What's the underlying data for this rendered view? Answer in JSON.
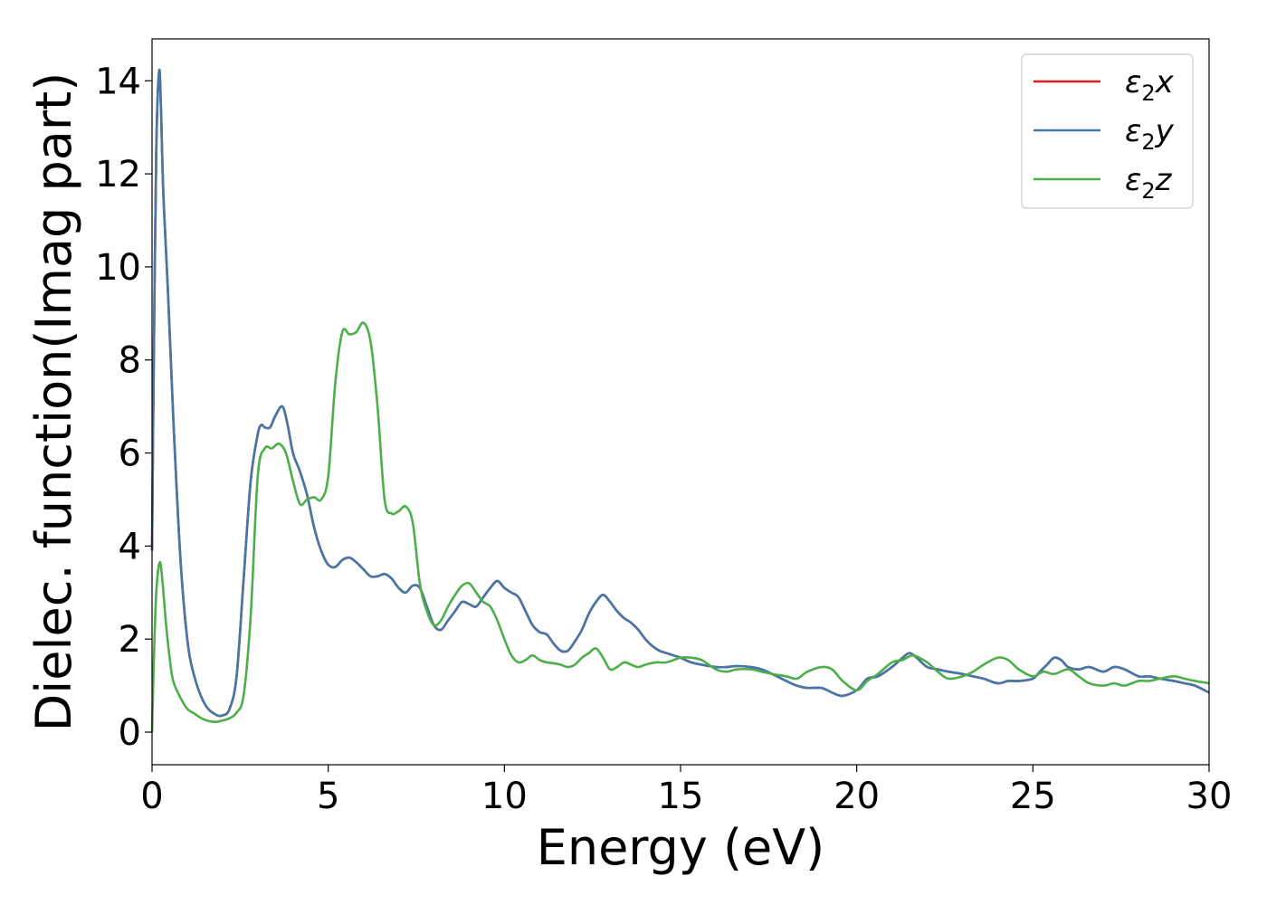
{
  "chart_data": {
    "type": "line",
    "title": "",
    "xlabel": "Energy (eV)",
    "ylabel": "Dielec. function(Imag part)",
    "xlim": [
      0,
      30
    ],
    "ylim": [
      -0.7,
      14.9
    ],
    "x_ticks": [
      0,
      5,
      10,
      15,
      20,
      25,
      30
    ],
    "y_ticks": [
      0,
      2,
      4,
      6,
      8,
      10,
      12,
      14
    ],
    "grid": false,
    "legend_position": "top-right",
    "series": [
      {
        "name": "ε2x",
        "legend_parts": [
          "ε",
          "2",
          "x"
        ],
        "color": "#e41a1c",
        "x": [
          0,
          0.05,
          0.12,
          0.2,
          0.25,
          0.32,
          0.45,
          0.6,
          0.8,
          1.0,
          1.2,
          1.5,
          1.8,
          2.0,
          2.2,
          2.4,
          2.6,
          2.8,
          3.0,
          3.1,
          3.2,
          3.35,
          3.5,
          3.7,
          3.85,
          4.0,
          4.2,
          4.4,
          4.6,
          4.8,
          5.0,
          5.2,
          5.4,
          5.6,
          5.8,
          6.0,
          6.2,
          6.4,
          6.6,
          6.8,
          7.0,
          7.2,
          7.4,
          7.6,
          7.8,
          8.0,
          8.2,
          8.4,
          8.6,
          8.8,
          9.0,
          9.2,
          9.4,
          9.6,
          9.8,
          10.0,
          10.2,
          10.4,
          10.6,
          10.8,
          11.0,
          11.2,
          11.4,
          11.6,
          11.8,
          12.0,
          12.2,
          12.4,
          12.6,
          12.8,
          13.0,
          13.2,
          13.4,
          13.6,
          13.8,
          14.0,
          14.2,
          14.4,
          14.6,
          14.8,
          15.0,
          15.3,
          15.6,
          16.0,
          16.3,
          16.6,
          17.0,
          17.3,
          17.6,
          18.0,
          18.3,
          18.6,
          19.0,
          19.3,
          19.6,
          20.0,
          20.3,
          20.6,
          21.0,
          21.3,
          21.5,
          21.7,
          22.0,
          22.3,
          22.6,
          23.0,
          23.3,
          23.6,
          24.0,
          24.3,
          24.6,
          25.0,
          25.2,
          25.4,
          25.6,
          25.8,
          26.0,
          26.3,
          26.6,
          27.0,
          27.3,
          27.6,
          28.0,
          28.3,
          28.6,
          29.0,
          29.3,
          29.6,
          30.0
        ],
        "values": [
          3.9,
          8.0,
          12.5,
          14.2,
          13.5,
          11.6,
          9.5,
          6.8,
          3.8,
          2.0,
          1.2,
          0.6,
          0.38,
          0.36,
          0.5,
          1.2,
          3.3,
          5.4,
          6.4,
          6.6,
          6.55,
          6.55,
          6.8,
          7.0,
          6.6,
          6.0,
          5.6,
          5.1,
          4.4,
          3.9,
          3.6,
          3.55,
          3.7,
          3.75,
          3.65,
          3.5,
          3.35,
          3.35,
          3.4,
          3.3,
          3.1,
          3.0,
          3.15,
          3.1,
          2.7,
          2.3,
          2.2,
          2.4,
          2.6,
          2.8,
          2.75,
          2.7,
          2.9,
          3.1,
          3.25,
          3.1,
          3.0,
          2.9,
          2.6,
          2.3,
          2.15,
          2.1,
          1.9,
          1.75,
          1.75,
          1.95,
          2.2,
          2.55,
          2.8,
          2.95,
          2.8,
          2.6,
          2.45,
          2.35,
          2.2,
          2.0,
          1.85,
          1.75,
          1.7,
          1.65,
          1.6,
          1.5,
          1.45,
          1.4,
          1.4,
          1.42,
          1.4,
          1.35,
          1.25,
          1.1,
          1.0,
          0.95,
          0.95,
          0.85,
          0.78,
          0.9,
          1.15,
          1.2,
          1.4,
          1.6,
          1.7,
          1.6,
          1.4,
          1.35,
          1.3,
          1.25,
          1.2,
          1.15,
          1.05,
          1.1,
          1.1,
          1.15,
          1.3,
          1.45,
          1.6,
          1.55,
          1.4,
          1.35,
          1.4,
          1.3,
          1.4,
          1.35,
          1.2,
          1.2,
          1.15,
          1.1,
          1.05,
          1.0,
          0.85
        ]
      },
      {
        "name": "ε2y",
        "legend_parts": [
          "ε",
          "2",
          "y"
        ],
        "color": "#4477aa",
        "x": [
          0,
          0.05,
          0.12,
          0.2,
          0.25,
          0.32,
          0.45,
          0.6,
          0.8,
          1.0,
          1.2,
          1.5,
          1.8,
          2.0,
          2.2,
          2.4,
          2.6,
          2.8,
          3.0,
          3.1,
          3.2,
          3.35,
          3.5,
          3.7,
          3.85,
          4.0,
          4.2,
          4.4,
          4.6,
          4.8,
          5.0,
          5.2,
          5.4,
          5.6,
          5.8,
          6.0,
          6.2,
          6.4,
          6.6,
          6.8,
          7.0,
          7.2,
          7.4,
          7.6,
          7.8,
          8.0,
          8.2,
          8.4,
          8.6,
          8.8,
          9.0,
          9.2,
          9.4,
          9.6,
          9.8,
          10.0,
          10.2,
          10.4,
          10.6,
          10.8,
          11.0,
          11.2,
          11.4,
          11.6,
          11.8,
          12.0,
          12.2,
          12.4,
          12.6,
          12.8,
          13.0,
          13.2,
          13.4,
          13.6,
          13.8,
          14.0,
          14.2,
          14.4,
          14.6,
          14.8,
          15.0,
          15.3,
          15.6,
          16.0,
          16.3,
          16.6,
          17.0,
          17.3,
          17.6,
          18.0,
          18.3,
          18.6,
          19.0,
          19.3,
          19.6,
          20.0,
          20.3,
          20.6,
          21.0,
          21.3,
          21.5,
          21.7,
          22.0,
          22.3,
          22.6,
          23.0,
          23.3,
          23.6,
          24.0,
          24.3,
          24.6,
          25.0,
          25.2,
          25.4,
          25.6,
          25.8,
          26.0,
          26.3,
          26.6,
          27.0,
          27.3,
          27.6,
          28.0,
          28.3,
          28.6,
          29.0,
          29.3,
          29.6,
          30.0
        ],
        "values": [
          3.9,
          8.0,
          12.5,
          14.2,
          13.5,
          11.6,
          9.5,
          6.8,
          3.8,
          2.0,
          1.2,
          0.6,
          0.38,
          0.36,
          0.5,
          1.2,
          3.3,
          5.4,
          6.4,
          6.6,
          6.55,
          6.55,
          6.8,
          7.0,
          6.6,
          6.0,
          5.6,
          5.1,
          4.4,
          3.9,
          3.6,
          3.55,
          3.7,
          3.75,
          3.65,
          3.5,
          3.35,
          3.35,
          3.4,
          3.3,
          3.1,
          3.0,
          3.15,
          3.1,
          2.7,
          2.3,
          2.2,
          2.4,
          2.6,
          2.8,
          2.75,
          2.7,
          2.9,
          3.1,
          3.25,
          3.1,
          3.0,
          2.9,
          2.6,
          2.3,
          2.15,
          2.1,
          1.9,
          1.75,
          1.75,
          1.95,
          2.2,
          2.55,
          2.8,
          2.95,
          2.8,
          2.6,
          2.45,
          2.35,
          2.2,
          2.0,
          1.85,
          1.75,
          1.7,
          1.65,
          1.6,
          1.5,
          1.45,
          1.4,
          1.4,
          1.42,
          1.4,
          1.35,
          1.25,
          1.1,
          1.0,
          0.95,
          0.95,
          0.85,
          0.78,
          0.9,
          1.15,
          1.2,
          1.4,
          1.6,
          1.7,
          1.6,
          1.4,
          1.35,
          1.3,
          1.25,
          1.2,
          1.15,
          1.05,
          1.1,
          1.1,
          1.15,
          1.3,
          1.45,
          1.6,
          1.55,
          1.4,
          1.35,
          1.4,
          1.3,
          1.4,
          1.35,
          1.2,
          1.2,
          1.15,
          1.1,
          1.05,
          1.0,
          0.85
        ]
      },
      {
        "name": "ε2z",
        "legend_parts": [
          "ε",
          "2",
          "z"
        ],
        "color": "#4daf4a",
        "x": [
          0,
          0.05,
          0.12,
          0.22,
          0.3,
          0.4,
          0.5,
          0.6,
          0.8,
          1.0,
          1.2,
          1.4,
          1.6,
          1.8,
          2.0,
          2.2,
          2.4,
          2.6,
          2.8,
          3.0,
          3.2,
          3.4,
          3.6,
          3.8,
          4.0,
          4.2,
          4.4,
          4.6,
          4.8,
          5.0,
          5.2,
          5.4,
          5.6,
          5.8,
          6.0,
          6.2,
          6.4,
          6.6,
          6.8,
          7.0,
          7.2,
          7.4,
          7.6,
          7.8,
          8.0,
          8.2,
          8.4,
          8.6,
          8.8,
          9.0,
          9.2,
          9.4,
          9.6,
          9.8,
          10.0,
          10.2,
          10.4,
          10.6,
          10.8,
          11.0,
          11.2,
          11.4,
          11.6,
          11.8,
          12.0,
          12.2,
          12.4,
          12.6,
          12.8,
          13.0,
          13.2,
          13.4,
          13.6,
          13.8,
          14.0,
          14.3,
          14.6,
          15.0,
          15.3,
          15.6,
          16.0,
          16.3,
          16.6,
          17.0,
          17.3,
          17.6,
          18.0,
          18.3,
          18.6,
          19.0,
          19.3,
          19.6,
          20.0,
          20.3,
          20.6,
          21.0,
          21.3,
          21.6,
          22.0,
          22.3,
          22.6,
          23.0,
          23.3,
          23.6,
          24.0,
          24.3,
          24.6,
          25.0,
          25.3,
          25.6,
          26.0,
          26.3,
          26.6,
          27.0,
          27.3,
          27.6,
          28.0,
          28.3,
          28.6,
          29.0,
          29.3,
          29.6,
          30.0
        ],
        "values": [
          0.0,
          1.5,
          3.0,
          3.65,
          3.2,
          2.3,
          1.6,
          1.1,
          0.75,
          0.5,
          0.4,
          0.3,
          0.24,
          0.22,
          0.25,
          0.3,
          0.42,
          0.8,
          2.5,
          5.5,
          6.1,
          6.1,
          6.2,
          6.0,
          5.4,
          4.9,
          5.0,
          5.05,
          5.0,
          5.5,
          7.5,
          8.6,
          8.55,
          8.6,
          8.8,
          8.4,
          7.0,
          5.0,
          4.7,
          4.75,
          4.85,
          4.5,
          3.2,
          2.6,
          2.3,
          2.4,
          2.7,
          2.95,
          3.15,
          3.2,
          3.0,
          2.8,
          2.7,
          2.4,
          2.0,
          1.65,
          1.5,
          1.55,
          1.65,
          1.55,
          1.5,
          1.48,
          1.45,
          1.4,
          1.45,
          1.6,
          1.7,
          1.8,
          1.6,
          1.35,
          1.4,
          1.5,
          1.45,
          1.4,
          1.45,
          1.5,
          1.5,
          1.6,
          1.6,
          1.55,
          1.35,
          1.3,
          1.35,
          1.35,
          1.3,
          1.25,
          1.2,
          1.15,
          1.3,
          1.4,
          1.35,
          1.1,
          0.9,
          1.1,
          1.25,
          1.5,
          1.55,
          1.65,
          1.5,
          1.3,
          1.15,
          1.2,
          1.3,
          1.45,
          1.6,
          1.55,
          1.35,
          1.2,
          1.3,
          1.25,
          1.35,
          1.2,
          1.05,
          1.0,
          1.05,
          1.0,
          1.1,
          1.1,
          1.15,
          1.2,
          1.15,
          1.1,
          1.05
        ]
      }
    ]
  }
}
